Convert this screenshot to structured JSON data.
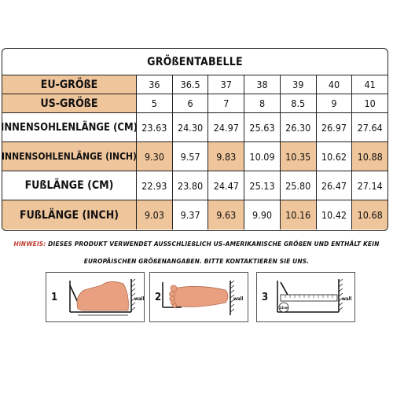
{
  "table": {
    "title": "GRÖßENTABELLE",
    "rows": [
      {
        "label": "EU-GRÖßE",
        "values": [
          "36",
          "36.5",
          "37",
          "38",
          "39",
          "40",
          "41"
        ]
      },
      {
        "label": "US-GRÖßE",
        "values": [
          "5",
          "6",
          "7",
          "8",
          "8.5",
          "9",
          "10"
        ]
      },
      {
        "label": "INNENSOHLENLÄNGE (CM)",
        "values": [
          "23.63",
          "24.30",
          "24.97",
          "25.63",
          "26.30",
          "26.97",
          "27.64"
        ]
      },
      {
        "label": "INNENSOHLENLÄNGE (INCH)",
        "values": [
          "9.30",
          "9.57",
          "9.83",
          "10.09",
          "10.35",
          "10.62",
          "10.88"
        ]
      },
      {
        "label": "FUßLÄNGE (CM)",
        "values": [
          "22.93",
          "23.80",
          "24.47",
          "25.13",
          "25.80",
          "26.47",
          "27.14"
        ]
      },
      {
        "label": "FUßLÄNGE (INCH)",
        "values": [
          "9.03",
          "9.37",
          "9.63",
          "9.90",
          "10.16",
          "10.42",
          "10.68"
        ]
      }
    ]
  },
  "note": {
    "prefix": "HINWEIS:",
    "line1": " DIESES PRODUKT VERWENDET AUSSCHLIEßLICH US-AMERIKANISCHE GRÖßEN UND ENTHÄLT KEIN",
    "line2": "EUROPÄISCHEN GRÖßENANGABEN. BITTE KONTAKTIEREN SIE UNS."
  },
  "steps": [
    {
      "number": "1",
      "wall": "wall"
    },
    {
      "number": "2",
      "wall": "wall"
    },
    {
      "number": "3",
      "wall": "wall",
      "ruler": "13cm"
    }
  ],
  "colors": {
    "peach": "#efc59b",
    "foot": "#e9a080",
    "note_prefix": "#c0392b"
  }
}
